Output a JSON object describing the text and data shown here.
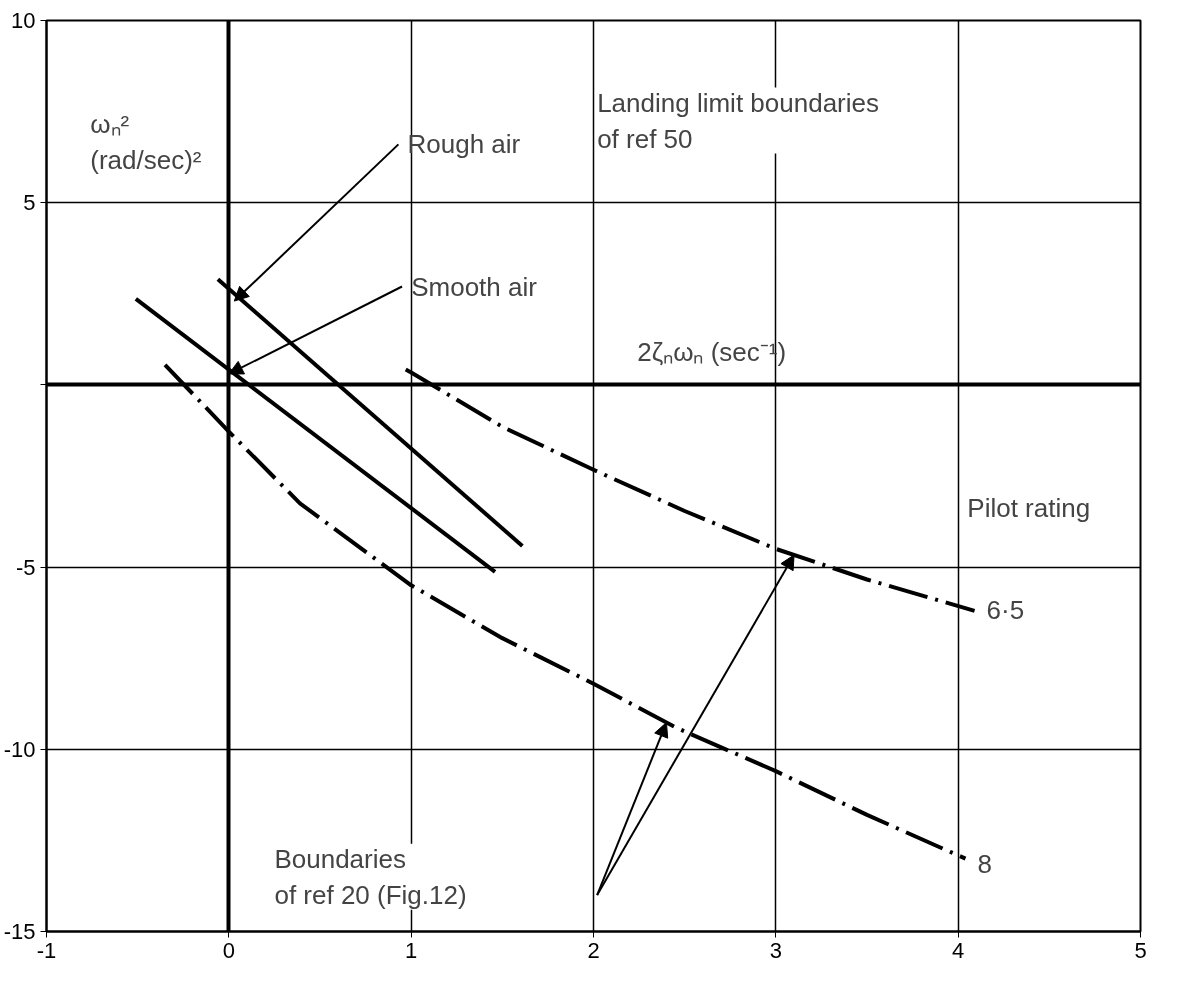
{
  "chart_data": {
    "type": "line",
    "xlabel": "2ζₙωₙ   (sec⁻¹)",
    "ylabel": "ωₙ²\n(rad/sec)²",
    "xlim": [
      -1,
      5
    ],
    "ylim": [
      -15,
      10
    ],
    "xticks": [
      -1,
      0,
      1,
      2,
      3,
      4,
      5
    ],
    "yticks": [
      -15,
      -10,
      -5,
      {
        "value": 0,
        "label": null
      },
      5,
      10
    ],
    "grid": true,
    "marker": "none",
    "series": [
      {
        "color": "#000000",
        "line_style": "solid",
        "x": [
          -0.06,
          1.61
        ],
        "values": [
          2.9,
          -4.42
        ]
      },
      {
        "color": "#000000",
        "line_style": "solid",
        "x": [
          -0.51,
          1.46
        ],
        "values": [
          2.36,
          -5.13
        ]
      },
      {
        "name": "6·5",
        "color": "#000000",
        "line_style": "dashed",
        "x": [
          0.97,
          1.0,
          1.5,
          2.0,
          2.5,
          3.0,
          3.5,
          4.09
        ],
        "values": [
          0.42,
          0.34,
          -1.15,
          -2.33,
          -3.46,
          -4.5,
          -5.34,
          -6.2
        ]
      },
      {
        "name": "8",
        "color": "#000000",
        "line_style": "dashed",
        "x": [
          -0.35,
          0.0,
          0.39,
          1.0,
          1.5,
          2.0,
          2.45,
          3.0,
          3.5,
          4.04
        ],
        "values": [
          0.55,
          -1.28,
          -3.25,
          -5.5,
          -6.95,
          -8.2,
          -9.4,
          -10.6,
          -11.8,
          -13.0
        ]
      }
    ],
    "annotations": [
      {
        "text": "Rough air",
        "x": 0.03,
        "y": 2.3
      },
      {
        "text": "Smooth air",
        "x": 0.0,
        "y": 0.3
      },
      "Landing limit boundaries\nof ref 50",
      "Pilot rating",
      "Boundaries\nof ref 20  (Fig.12)"
    ]
  }
}
